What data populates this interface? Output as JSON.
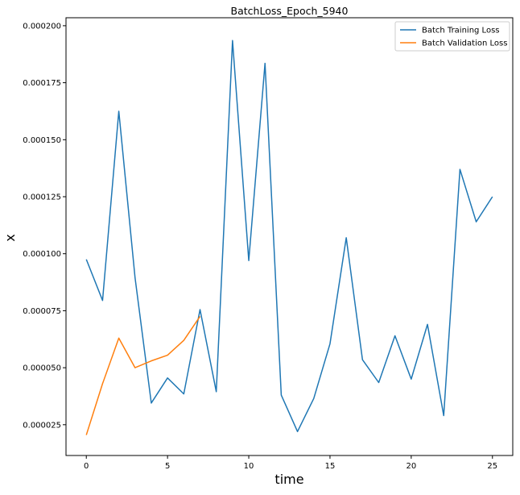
{
  "chart_data": {
    "type": "line",
    "title": "BatchLoss_Epoch_5940",
    "xlabel": "time",
    "ylabel": "x",
    "xlim": [
      -1.25,
      26.25
    ],
    "ylim": [
      1.15e-05,
      0.0002035
    ],
    "x_ticks": [
      0,
      5,
      10,
      15,
      20,
      25
    ],
    "x_tick_labels": [
      "0",
      "5",
      "10",
      "15",
      "20",
      "25"
    ],
    "y_ticks": [
      2.5e-05,
      5e-05,
      7.5e-05,
      0.0001,
      0.000125,
      0.00015,
      0.000175,
      0.0002
    ],
    "y_tick_labels": [
      "0.000025",
      "0.000050",
      "0.000075",
      "0.000100",
      "0.000125",
      "0.000150",
      "0.000175",
      "0.000200"
    ],
    "grid": false,
    "legend": "top-right",
    "series": [
      {
        "name": "Batch Training Loss",
        "color": "#1f77b4",
        "x": [
          0,
          1,
          2,
          3,
          4,
          5,
          6,
          7,
          8,
          9,
          10,
          11,
          12,
          13,
          14,
          15,
          16,
          17,
          18,
          19,
          20,
          21,
          22,
          23,
          24,
          25
        ],
        "y": [
          9.75e-05,
          7.95e-05,
          0.0001625,
          8.95e-05,
          3.45e-05,
          4.55e-05,
          3.85e-05,
          7.55e-05,
          3.95e-05,
          0.0001935,
          9.7e-05,
          0.0001835,
          3.8e-05,
          2.2e-05,
          3.65e-05,
          6.05e-05,
          0.000107,
          5.35e-05,
          4.35e-05,
          6.4e-05,
          4.5e-05,
          6.9e-05,
          2.9e-05,
          0.000137,
          0.000114,
          0.000125
        ]
      },
      {
        "name": "Batch Validation Loss",
        "color": "#ff7f0e",
        "x": [
          0,
          1,
          2,
          3,
          4,
          5,
          6,
          7
        ],
        "y": [
          2.05e-05,
          4.3e-05,
          6.3e-05,
          5e-05,
          5.3e-05,
          5.55e-05,
          6.2e-05,
          7.25e-05
        ]
      }
    ]
  }
}
